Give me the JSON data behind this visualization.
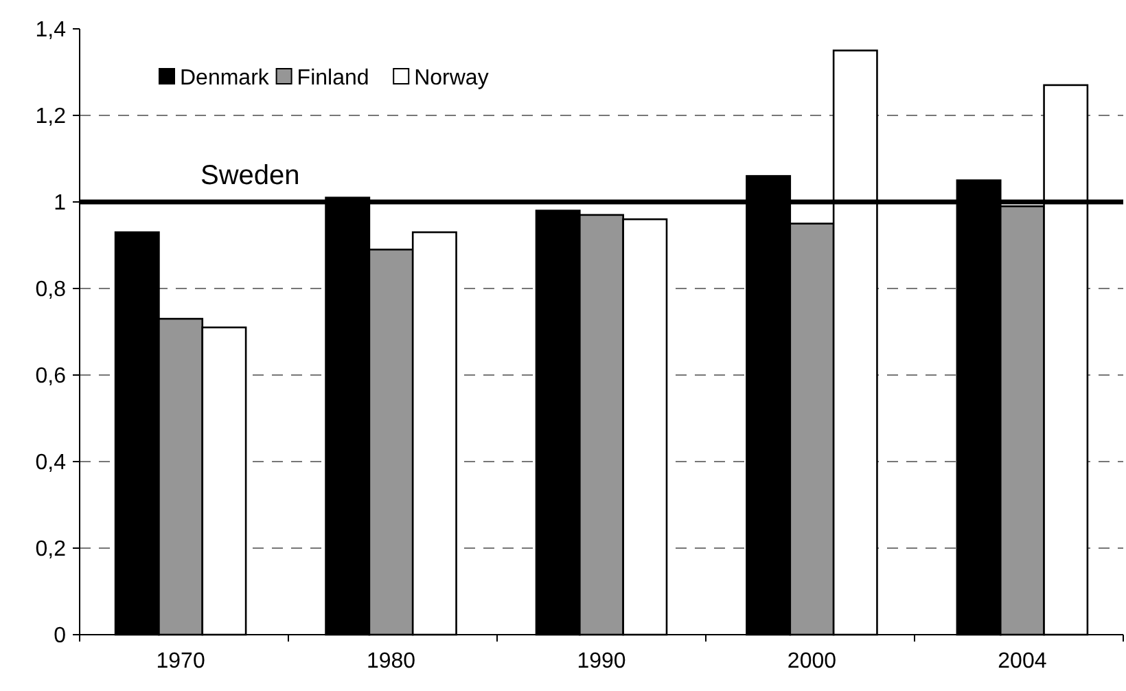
{
  "chart_data": {
    "type": "bar",
    "categories": [
      "1970",
      "1980",
      "1990",
      "2000",
      "2004"
    ],
    "series": [
      {
        "name": "Denmark",
        "color": "#000000",
        "values": [
          0.93,
          1.01,
          0.98,
          1.06,
          1.05
        ]
      },
      {
        "name": "Finland",
        "color": "#969696",
        "values": [
          0.73,
          0.89,
          0.97,
          0.95,
          0.99
        ]
      },
      {
        "name": "Norway",
        "color": "#ffffff",
        "values": [
          0.71,
          0.93,
          0.96,
          1.35,
          1.27
        ]
      }
    ],
    "ylim": [
      0,
      1.4
    ],
    "yticks": [
      {
        "value": 0,
        "label": "0"
      },
      {
        "value": 0.2,
        "label": "0,2"
      },
      {
        "value": 0.4,
        "label": "0,4"
      },
      {
        "value": 0.6,
        "label": "0,6"
      },
      {
        "value": 0.8,
        "label": "0,8"
      },
      {
        "value": 1,
        "label": "1"
      },
      {
        "value": 1.2,
        "label": "1,2"
      },
      {
        "value": 1.4,
        "label": "1,4"
      }
    ],
    "grid": "y",
    "legend": "top left",
    "ref_lines": [
      {
        "axis": "y",
        "value": 1,
        "label": "Sweden",
        "color": "#000000"
      }
    ]
  }
}
